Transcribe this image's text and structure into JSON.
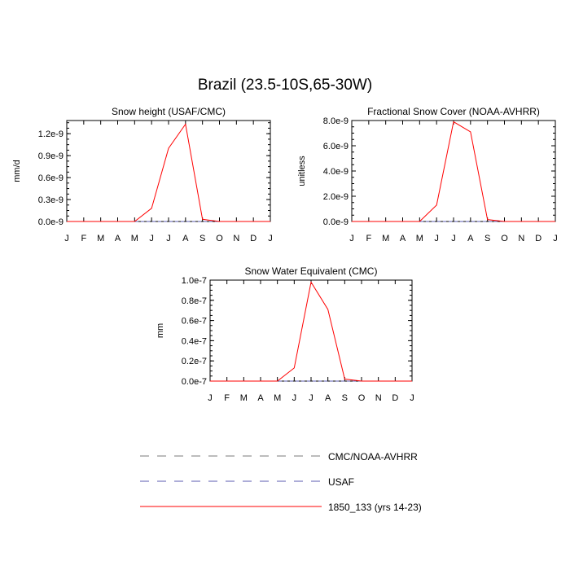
{
  "figure": {
    "title": "Brazil (23.5-10S,65-30W)"
  },
  "colors": {
    "model": "#ff0000",
    "cmc": "#7a7a7a",
    "usaf": "#5b5bb0"
  },
  "legend": [
    {
      "label": "CMC/NOAA-AVHRR",
      "style": "dashed",
      "color": "#7a7a7a"
    },
    {
      "label": "USAF",
      "style": "dashed",
      "color": "#5b5bb0"
    },
    {
      "label": "1850_133 (yrs 14-23)",
      "style": "solid",
      "color": "#ff0000"
    }
  ],
  "chart_data": [
    {
      "type": "line",
      "title": "Snow height (USAF/CMC)",
      "xlabel": "",
      "ylabel": "mm/d",
      "categories": [
        "J",
        "F",
        "M",
        "A",
        "M",
        "J",
        "J",
        "A",
        "S",
        "O",
        "N",
        "D",
        "J"
      ],
      "ylim": [
        0,
        1.38e-09
      ],
      "yticks": [
        0,
        3e-10,
        6e-10,
        9e-10,
        1.2e-09
      ],
      "ytick_labels": [
        "0.0e-9",
        "0.3e-9",
        "0.6e-9",
        "0.9e-9",
        "1.2e-9"
      ],
      "series": [
        {
          "name": "1850_133 (yrs 14-23)",
          "color": "#ff0000",
          "style": "solid",
          "values": [
            0,
            0,
            0,
            0,
            0,
            1.8e-10,
            1e-09,
            1.33e-09,
            3e-11,
            0,
            0,
            0,
            0
          ]
        },
        {
          "name": "CMC/NOAA-AVHRR",
          "color": "#7a7a7a",
          "style": "dashed",
          "values": [
            0,
            0,
            0,
            0,
            0,
            0,
            0,
            0,
            0,
            0,
            0,
            0,
            0
          ]
        },
        {
          "name": "USAF",
          "color": "#5b5bb0",
          "style": "dashed",
          "values": [
            0,
            0,
            0,
            0,
            0,
            0,
            0,
            0,
            0,
            0,
            0,
            0,
            0
          ]
        }
      ]
    },
    {
      "type": "line",
      "title": "Fractional Snow Cover (NOAA-AVHRR)",
      "xlabel": "",
      "ylabel": "unitless",
      "categories": [
        "J",
        "F",
        "M",
        "A",
        "M",
        "J",
        "J",
        "A",
        "S",
        "O",
        "N",
        "D",
        "J"
      ],
      "ylim": [
        0,
        8e-09
      ],
      "yticks": [
        0,
        2e-09,
        4e-09,
        6e-09,
        8e-09
      ],
      "ytick_labels": [
        "0.0e-9",
        "2.0e-9",
        "4.0e-9",
        "6.0e-9",
        "8.0e-9"
      ],
      "series": [
        {
          "name": "1850_133 (yrs 14-23)",
          "color": "#ff0000",
          "style": "solid",
          "values": [
            0,
            0,
            0,
            0,
            0,
            1.3e-09,
            7.9e-09,
            7.1e-09,
            1.5e-10,
            0,
            0,
            0,
            0
          ]
        },
        {
          "name": "CMC/NOAA-AVHRR",
          "color": "#7a7a7a",
          "style": "dashed",
          "values": [
            0,
            0,
            0,
            0,
            0,
            0,
            0,
            0,
            0,
            0,
            0,
            0,
            0
          ]
        },
        {
          "name": "USAF",
          "color": "#5b5bb0",
          "style": "dashed",
          "values": [
            0,
            0,
            0,
            0,
            0,
            0,
            0,
            0,
            0,
            0,
            0,
            0,
            0
          ]
        }
      ]
    },
    {
      "type": "line",
      "title": "Snow Water Equivalent (CMC)",
      "xlabel": "",
      "ylabel": "mm",
      "categories": [
        "J",
        "F",
        "M",
        "A",
        "M",
        "J",
        "J",
        "A",
        "S",
        "O",
        "N",
        "D",
        "J"
      ],
      "ylim": [
        0,
        1e-07
      ],
      "yticks": [
        0,
        2e-08,
        4e-08,
        6e-08,
        8e-08,
        1e-07
      ],
      "ytick_labels": [
        "0.0e-7",
        "0.2e-7",
        "0.4e-7",
        "0.6e-7",
        "0.8e-7",
        "1.0e-7"
      ],
      "series": [
        {
          "name": "1850_133 (yrs 14-23)",
          "color": "#ff0000",
          "style": "solid",
          "values": [
            0,
            0,
            0,
            0,
            0,
            1.3e-08,
            9.8e-08,
            7.1e-08,
            2e-09,
            0,
            0,
            0,
            0
          ]
        },
        {
          "name": "CMC/NOAA-AVHRR",
          "color": "#7a7a7a",
          "style": "dashed",
          "values": [
            0,
            0,
            0,
            0,
            0,
            0,
            0,
            0,
            0,
            0,
            0,
            0,
            0
          ]
        },
        {
          "name": "USAF",
          "color": "#5b5bb0",
          "style": "dashed",
          "values": [
            0,
            0,
            0,
            0,
            0,
            0,
            0,
            0,
            0,
            0,
            0,
            0,
            0
          ]
        }
      ]
    }
  ]
}
